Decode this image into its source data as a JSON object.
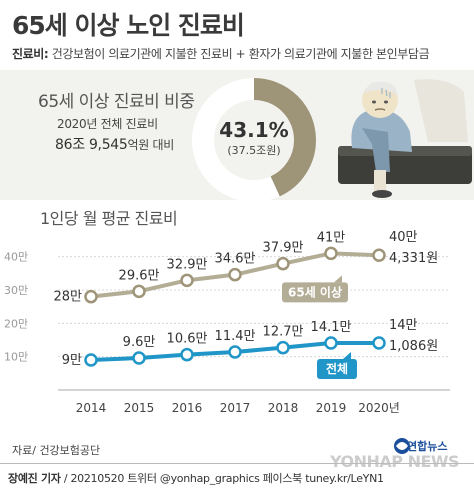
{
  "title": "65세 이상 노인 진료비",
  "definition": {
    "label": "진료비:",
    "text": "건강보험이 의료기관에 지불한 진료비 + 환자가 의료기관에 지불한 본인부담금"
  },
  "ratio": {
    "title": "65세 이상 진료비 비중",
    "sub1": "2020년 전체 진료비",
    "sub2_value": "86조 9,545",
    "sub2_unit": "억원 대비",
    "percent_text": "43.1%",
    "amount_text": "(37.5조원)",
    "percent": 43.1,
    "colors": {
      "fill": "#9e9478",
      "rest": "#ffffff"
    }
  },
  "chart_title": "1인당 월 평균 진료비",
  "chart_data": {
    "type": "line",
    "x": [
      "2014",
      "2015",
      "2016",
      "2017",
      "2018",
      "2019",
      "2020년"
    ],
    "ylim": [
      0,
      45
    ],
    "yticks": [
      {
        "value": 10,
        "label": "10만"
      },
      {
        "value": 20,
        "label": "20만"
      },
      {
        "value": 30,
        "label": "30만"
      },
      {
        "value": 40,
        "label": "40만"
      }
    ],
    "series": [
      {
        "name": "65세 이상",
        "values": [
          28,
          29.6,
          32.9,
          34.6,
          37.9,
          41,
          40.4331
        ],
        "labels": [
          "28만",
          "29.6만",
          "32.9만",
          "34.6만",
          "37.9만",
          "41만",
          ""
        ],
        "last_label_1": "40만",
        "last_label_2": "4,331원",
        "color": "#b4ad96",
        "marker_stroke": "#9e9478",
        "tag_color": "#b4ad96"
      },
      {
        "name": "전체",
        "values": [
          9,
          9.6,
          10.6,
          11.4,
          12.7,
          14.1,
          14.1086
        ],
        "labels": [
          "9만",
          "9.6만",
          "10.6만",
          "11.4만",
          "12.7만",
          "14.1만",
          ""
        ],
        "last_label_1": "14만",
        "last_label_2": "1,086원",
        "color": "#1f96c7",
        "marker_stroke": "#1f96c7",
        "tag_color": "#1f96c7"
      }
    ]
  },
  "source": "자료/ 건강보험공단",
  "credit": {
    "reporter": "장예진 기자",
    "text": "/ 20210520 트위터 @yonhap_graphics  페이스북 tuney.kr/LeYN1"
  },
  "logo": {
    "name": "연합뉴스",
    "watermark": "YONHAP NEWS"
  }
}
